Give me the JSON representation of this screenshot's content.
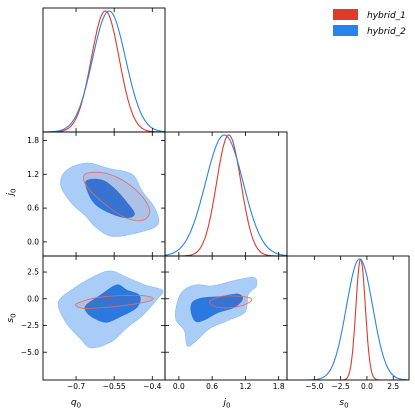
{
  "chart_data": {
    "type": "corner",
    "parameters": [
      {
        "key": "q0",
        "label": "q",
        "sub": "0",
        "range": [
          -0.83,
          -0.35
        ],
        "ticks": [
          -0.7,
          -0.55,
          -0.4
        ],
        "tick_labels": [
          "−0.7",
          "−0.55",
          "−0.4"
        ]
      },
      {
        "key": "j0",
        "label": "j",
        "sub": "0",
        "range": [
          -0.25,
          1.95
        ],
        "ticks": [
          0.0,
          0.6,
          1.2,
          1.8
        ],
        "tick_labels": [
          "0.0",
          "0.6",
          "1.2",
          "1.8"
        ]
      },
      {
        "key": "s0",
        "label": "s",
        "sub": "0",
        "range": [
          -7.6,
          4.0
        ],
        "ticks": [
          -5.0,
          -2.5,
          0.0,
          2.5
        ],
        "tick_labels": [
          "−5.0",
          "−2.5",
          "0.0",
          "2.5"
        ]
      }
    ],
    "legend": {
      "placement": "top-right",
      "entries": [
        {
          "label": "hybrid_1",
          "color": "#e03a2c"
        },
        {
          "label": "hybrid_2",
          "color": "#2b83e8"
        }
      ]
    },
    "series": [
      {
        "name": "hybrid_1",
        "color": "#e03a2c",
        "marginals": {
          "q0": {
            "mean": -0.585,
            "sd": 0.055
          },
          "j0": {
            "mean": 0.9,
            "sd": 0.22
          },
          "s0": {
            "mean": -0.6,
            "sd": 0.45
          }
        },
        "contours": {
          "q0_j0": [
            [
              -0.655,
              1.22
            ],
            [
              -0.6,
              1.23
            ],
            [
              -0.54,
              1.15
            ],
            [
              -0.48,
              0.98
            ],
            [
              -0.43,
              0.75
            ],
            [
              -0.41,
              0.52
            ],
            [
              -0.44,
              0.38
            ],
            [
              -0.5,
              0.42
            ],
            [
              -0.56,
              0.58
            ],
            [
              -0.62,
              0.8
            ],
            [
              -0.66,
              1.0
            ],
            [
              -0.67,
              1.15
            ]
          ],
          "q0_s0": [
            [
              -0.7,
              -0.5
            ],
            [
              -0.62,
              0.1
            ],
            [
              -0.52,
              0.3
            ],
            [
              -0.42,
              0.25
            ],
            [
              -0.4,
              -0.1
            ],
            [
              -0.47,
              -0.5
            ],
            [
              -0.58,
              -0.8
            ],
            [
              -0.67,
              -0.9
            ]
          ],
          "j0_s0": [
            [
              0.55,
              -0.3
            ],
            [
              0.75,
              0.2
            ],
            [
              1.05,
              0.25
            ],
            [
              1.3,
              0.05
            ],
            [
              1.25,
              -0.4
            ],
            [
              1.0,
              -0.8
            ],
            [
              0.7,
              -0.8
            ]
          ]
        }
      },
      {
        "name": "hybrid_2",
        "color": "#2b83e8",
        "marginals": {
          "q0": {
            "mean": -0.57,
            "sd": 0.065
          },
          "j0": {
            "mean": 0.82,
            "sd": 0.34
          },
          "s0": {
            "mean": -0.7,
            "sd": 1.25
          }
        },
        "contours": {
          "q0_j0_outer": [
            [
              -0.74,
              1.26
            ],
            [
              -0.66,
              1.4
            ],
            [
              -0.57,
              1.3
            ],
            [
              -0.48,
              1.2
            ],
            [
              -0.44,
              0.9
            ],
            [
              -0.39,
              0.6
            ],
            [
              -0.38,
              0.3
            ],
            [
              -0.47,
              0.15
            ],
            [
              -0.56,
              0.1
            ],
            [
              -0.62,
              0.25
            ],
            [
              -0.66,
              0.45
            ],
            [
              -0.72,
              0.7
            ],
            [
              -0.76,
              1.0
            ]
          ],
          "q0_j0_inner": [
            [
              -0.66,
              1.08
            ],
            [
              -0.6,
              1.1
            ],
            [
              -0.55,
              0.95
            ],
            [
              -0.5,
              0.7
            ],
            [
              -0.47,
              0.5
            ],
            [
              -0.5,
              0.43
            ],
            [
              -0.56,
              0.5
            ],
            [
              -0.62,
              0.65
            ],
            [
              -0.65,
              0.85
            ]
          ],
          "q0_s0_outer": [
            [
              -0.77,
              -0.4
            ],
            [
              -0.72,
              0.8
            ],
            [
              -0.62,
              2.2
            ],
            [
              -0.56,
              2.6
            ],
            [
              -0.5,
              2.0
            ],
            [
              -0.43,
              1.3
            ],
            [
              -0.36,
              0.8
            ],
            [
              -0.38,
              0.0
            ],
            [
              -0.44,
              -1.6
            ],
            [
              -0.5,
              -2.7
            ],
            [
              -0.56,
              -4.0
            ],
            [
              -0.64,
              -4.6
            ],
            [
              -0.68,
              -3.8
            ],
            [
              -0.74,
              -2.2
            ]
          ],
          "q0_s0_inner": [
            [
              -0.66,
              -0.6
            ],
            [
              -0.6,
              0.4
            ],
            [
              -0.54,
              1.3
            ],
            [
              -0.5,
              0.8
            ],
            [
              -0.45,
              0.3
            ],
            [
              -0.46,
              -0.8
            ],
            [
              -0.52,
              -1.6
            ],
            [
              -0.58,
              -2.2
            ],
            [
              -0.63,
              -1.8
            ],
            [
              -0.66,
              -1.2
            ]
          ],
          "j0_s0_outer": [
            [
              -0.05,
              -0.8
            ],
            [
              0.05,
              0.6
            ],
            [
              0.3,
              1.3
            ],
            [
              0.6,
              1.2
            ],
            [
              1.0,
              1.7
            ],
            [
              1.35,
              2.0
            ],
            [
              1.4,
              1.2
            ],
            [
              1.25,
              0.4
            ],
            [
              1.2,
              -1.2
            ],
            [
              0.9,
              -2.0
            ],
            [
              0.55,
              -2.8
            ],
            [
              0.3,
              -4.0
            ],
            [
              0.15,
              -4.4
            ],
            [
              0.1,
              -3.0
            ],
            [
              -0.05,
              -2.0
            ]
          ],
          "j0_s0_inner": [
            [
              0.25,
              -0.3
            ],
            [
              0.45,
              0.1
            ],
            [
              0.75,
              0.2
            ],
            [
              1.05,
              0.45
            ],
            [
              1.15,
              0.0
            ],
            [
              1.0,
              -0.8
            ],
            [
              0.7,
              -1.3
            ],
            [
              0.45,
              -2.0
            ],
            [
              0.3,
              -2.1
            ],
            [
              0.22,
              -1.2
            ]
          ]
        }
      }
    ]
  }
}
